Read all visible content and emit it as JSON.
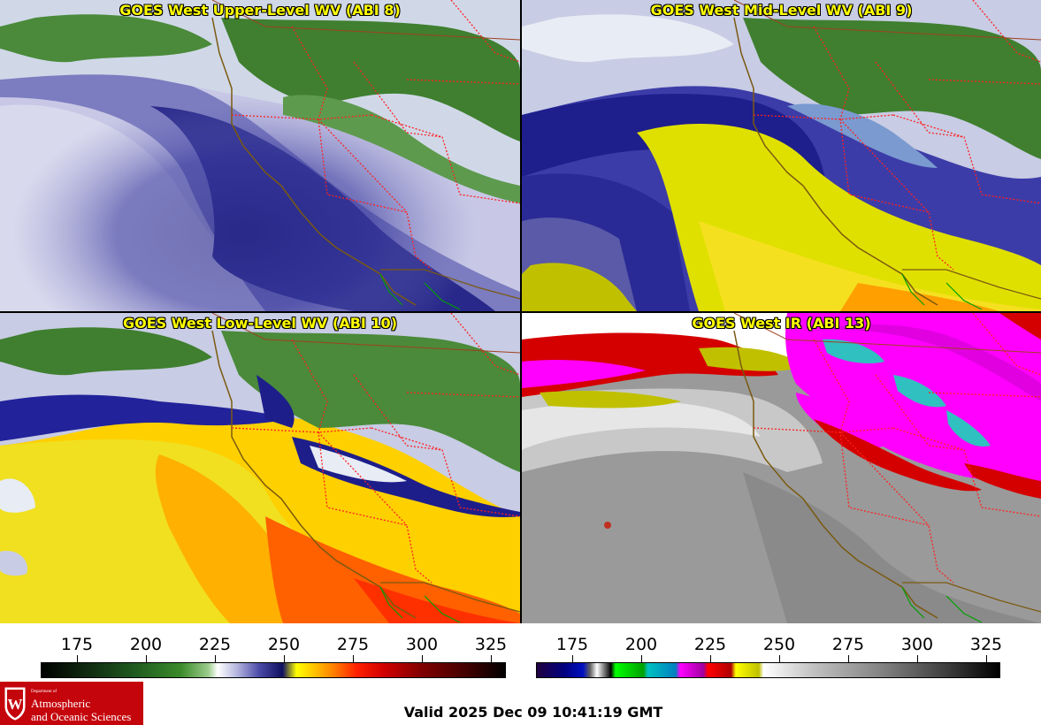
{
  "panels": {
    "upper_left": {
      "title": "GOES West Upper-Level WV (ABI 8)"
    },
    "upper_right": {
      "title": "GOES West Mid-Level WV (ABI 9)"
    },
    "lower_left": {
      "title": "GOES West Low-Level WV (ABI 10)"
    },
    "lower_right": {
      "title": "GOES West IR (ABI 13)"
    }
  },
  "colorbar_wv": {
    "ticks": [
      "175",
      "200",
      "225",
      "250",
      "275",
      "300",
      "325"
    ]
  },
  "colorbar_ir": {
    "ticks": [
      "175",
      "200",
      "225",
      "250",
      "275",
      "300",
      "325"
    ]
  },
  "logo": {
    "department": "Department of",
    "line1": "Atmospheric",
    "line2": "and Oceanic Sciences",
    "crest_letter": "W"
  },
  "valid_time": "Valid 2025 Dec 09 10:41:19 GMT",
  "colors": {
    "title_text": "#ffff00",
    "logo_background": "#c5050c",
    "state_borders": "#ff2020",
    "coastline": "#7a5a10",
    "country_border": "#00a000"
  }
}
